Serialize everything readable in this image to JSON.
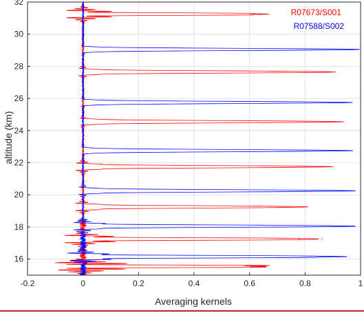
{
  "chart_data": {
    "type": "line",
    "xlabel": "Averaging kernels",
    "ylabel": "altitude (km)",
    "xlim": [
      -0.2,
      1.0
    ],
    "ylim": [
      15.0,
      32.0
    ],
    "x_ticks": [
      -0.2,
      0,
      0.2,
      0.4,
      0.6,
      0.8,
      1
    ],
    "x_tick_labels": [
      "-0.2",
      "0",
      "0.2",
      "0.4",
      "0.6",
      "0.8",
      "1"
    ],
    "y_ticks": [
      16,
      18,
      20,
      22,
      24,
      26,
      28,
      30,
      32
    ],
    "y_tick_labels": [
      "16",
      "18",
      "20",
      "22",
      "24",
      "26",
      "28",
      "30",
      "32"
    ],
    "grid": true,
    "legend_position": "top-right",
    "series": [
      {
        "name": "R07673/S001",
        "color": "#ff0000",
        "peaks": [
          {
            "altitude": 31.25,
            "value": 0.67,
            "min": -0.12
          },
          {
            "altitude": 27.65,
            "value": 0.91,
            "min": -0.03
          },
          {
            "altitude": 24.55,
            "value": 0.94,
            "min": -0.02
          },
          {
            "altitude": 21.75,
            "value": 0.9,
            "min": -0.05
          },
          {
            "altitude": 19.25,
            "value": 0.81,
            "min": -0.05
          },
          {
            "altitude": 17.25,
            "value": 0.86,
            "min": -0.12
          },
          {
            "altitude": 15.55,
            "value": 0.66,
            "min": -0.2
          }
        ]
      },
      {
        "name": "R07588/S002",
        "color": "#0000ff",
        "peaks": [
          {
            "altitude": 29.05,
            "value": 1.0,
            "min": -0.01
          },
          {
            "altitude": 25.75,
            "value": 0.97,
            "min": -0.01
          },
          {
            "altitude": 22.75,
            "value": 0.97,
            "min": -0.01
          },
          {
            "altitude": 20.25,
            "value": 0.98,
            "min": -0.03
          },
          {
            "altitude": 18.05,
            "value": 0.98,
            "min": -0.06
          },
          {
            "altitude": 16.15,
            "value": 0.95,
            "min": -0.1
          }
        ]
      }
    ]
  }
}
